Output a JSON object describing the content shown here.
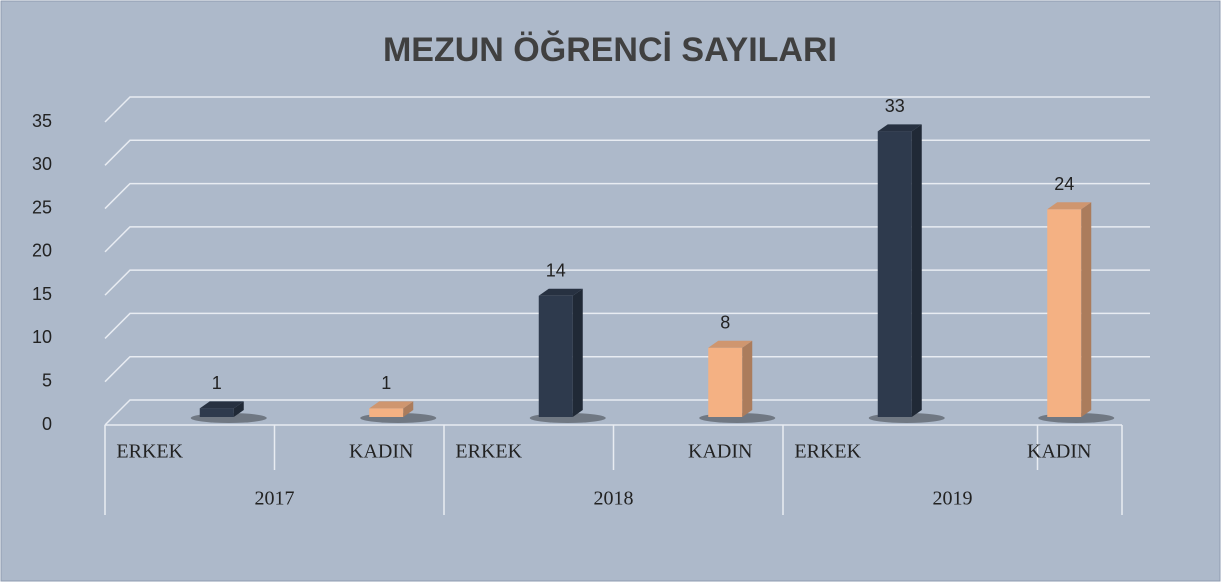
{
  "chart_data": {
    "type": "bar3d",
    "title": "MEZUN ÖĞRENCİ SAYILARI",
    "categories": [
      "ERKEK",
      "KADIN",
      "ERKEK",
      "KADIN",
      "ERKEK",
      "KADIN"
    ],
    "groups": [
      "2017",
      "2018",
      "2019"
    ],
    "values": [
      1,
      1,
      14,
      8,
      33,
      24
    ],
    "colors": [
      "#2e3a4d",
      "#f4b183",
      "#2e3a4d",
      "#f4b183",
      "#2e3a4d",
      "#f4b183"
    ],
    "ylim": [
      0,
      35
    ],
    "yticks": [
      0,
      5,
      10,
      15,
      20,
      25,
      30,
      35
    ],
    "grid": true
  }
}
